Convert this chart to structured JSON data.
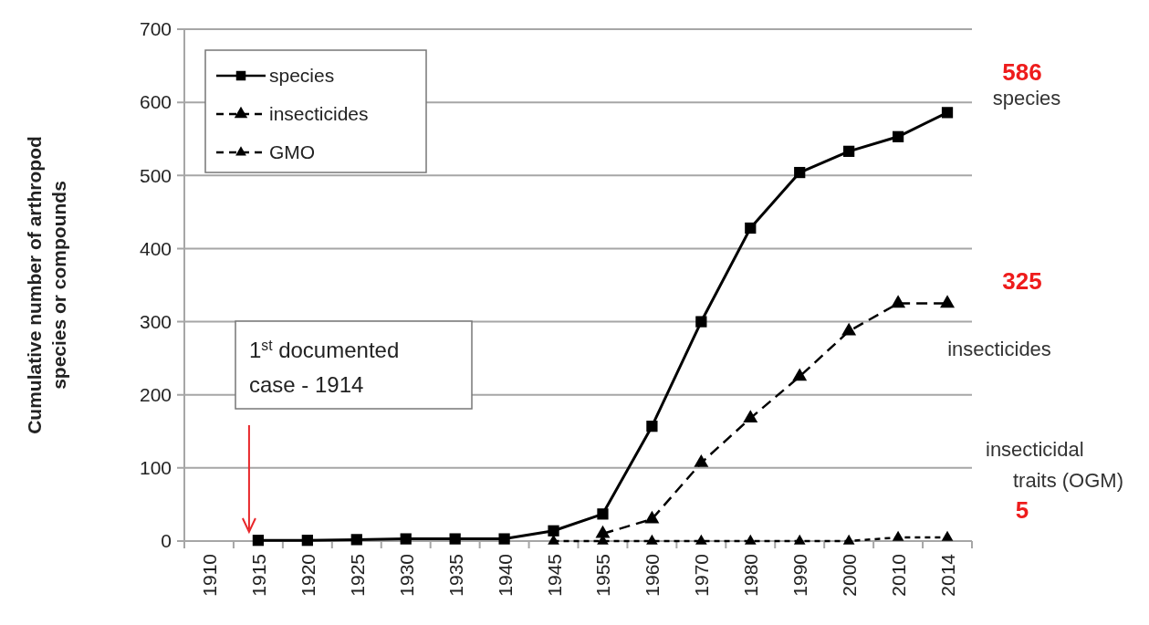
{
  "chart_data": {
    "type": "line",
    "ylabel": "Cumulative number of  arthropod\nspecies or compounds",
    "categories": [
      "1910",
      "1915",
      "1920",
      "1925",
      "1930",
      "1935",
      "1940",
      "1945",
      "1955",
      "1960",
      "1970",
      "1980",
      "1990",
      "2000",
      "2010",
      "2014"
    ],
    "series": [
      {
        "name": "species",
        "color": "#000000",
        "marker": "square",
        "line_style": "solid",
        "values": [
          null,
          1,
          1,
          2,
          3,
          3,
          3,
          14,
          37,
          157,
          300,
          428,
          504,
          533,
          553,
          586
        ]
      },
      {
        "name": "insecticides",
        "color": "#000000",
        "marker": "triangle",
        "line_style": "dashed",
        "values": [
          null,
          null,
          null,
          null,
          null,
          null,
          null,
          null,
          10,
          30,
          107,
          168,
          225,
          287,
          325,
          325
        ]
      },
      {
        "name": "GMO",
        "color": "#000000",
        "marker": "triangle",
        "line_style": "dotted",
        "values": [
          null,
          null,
          null,
          null,
          null,
          null,
          null,
          0,
          0,
          0,
          0,
          0,
          0,
          0,
          5,
          5
        ]
      }
    ],
    "ylim": [
      0,
      700
    ],
    "yticks": [
      0,
      100,
      200,
      300,
      400,
      500,
      600,
      700
    ],
    "grid": "y",
    "legend": "top left",
    "annotations": [
      "586",
      "species",
      "325",
      "insecticides",
      "insecticidal\ntraits  (OGM)",
      "5",
      "1$^{st}$ documented\ncase - 1914"
    ]
  }
}
